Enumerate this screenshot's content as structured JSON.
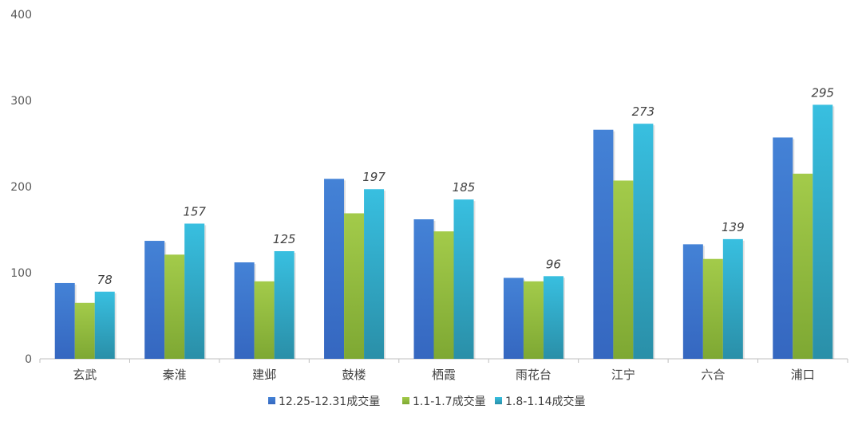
{
  "chart_data": {
    "type": "bar",
    "categories": [
      "玄武",
      "秦淮",
      "建邺",
      "鼓楼",
      "栖霞",
      "雨花台",
      "江宁",
      "六合",
      "浦口"
    ],
    "series": [
      {
        "name": "12.25-12.31成交量",
        "values": [
          88,
          137,
          112,
          209,
          162,
          94,
          266,
          133,
          257
        ],
        "color": "#3567c0",
        "color_top": "#4482d6"
      },
      {
        "name": "1.1-1.7成交量",
        "values": [
          65,
          121,
          90,
          169,
          148,
          90,
          207,
          116,
          215
        ],
        "color": "#7ea833",
        "color_top": "#a3cb4a"
      },
      {
        "name": "1.8-1.14成交量",
        "values": [
          78,
          157,
          125,
          197,
          185,
          96,
          273,
          139,
          295
        ],
        "color": "#2a8fa8",
        "color_top": "#38bfe0"
      }
    ],
    "data_labels": [
      "78",
      "157",
      "125",
      "197",
      "185",
      "96",
      "273",
      "139",
      "295"
    ],
    "data_label_series": 2,
    "ylim": [
      0,
      400
    ],
    "yticks": [
      "0",
      "100",
      "200",
      "300",
      "400"
    ],
    "grid": false,
    "legend_position": "bottom",
    "title": "",
    "xlabel": "",
    "ylabel": ""
  }
}
